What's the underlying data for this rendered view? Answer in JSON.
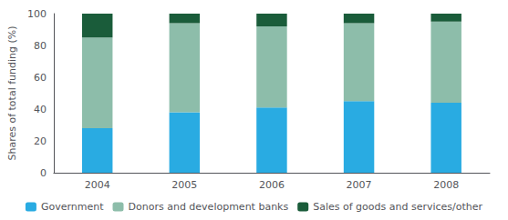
{
  "chart_data": {
    "type": "bar",
    "stacked": true,
    "categories": [
      "2004",
      "2005",
      "2006",
      "2007",
      "2008"
    ],
    "series": [
      {
        "name": "Government",
        "color": "#29ABE2",
        "values": [
          28,
          38,
          41,
          45,
          44
        ]
      },
      {
        "name": "Donors and development banks",
        "color": "#8DBDAA",
        "values": [
          57,
          56,
          51,
          49,
          51
        ]
      },
      {
        "name": "Sales of goods and services/other",
        "color": "#1A5C3A",
        "values": [
          15,
          6,
          8,
          6,
          5
        ]
      }
    ],
    "ylabel": "Shares of total funding (%)",
    "ylim": [
      0,
      100
    ],
    "yticks": [
      0,
      20,
      40,
      60,
      80,
      100
    ],
    "grid": false,
    "legend": "bottom"
  }
}
